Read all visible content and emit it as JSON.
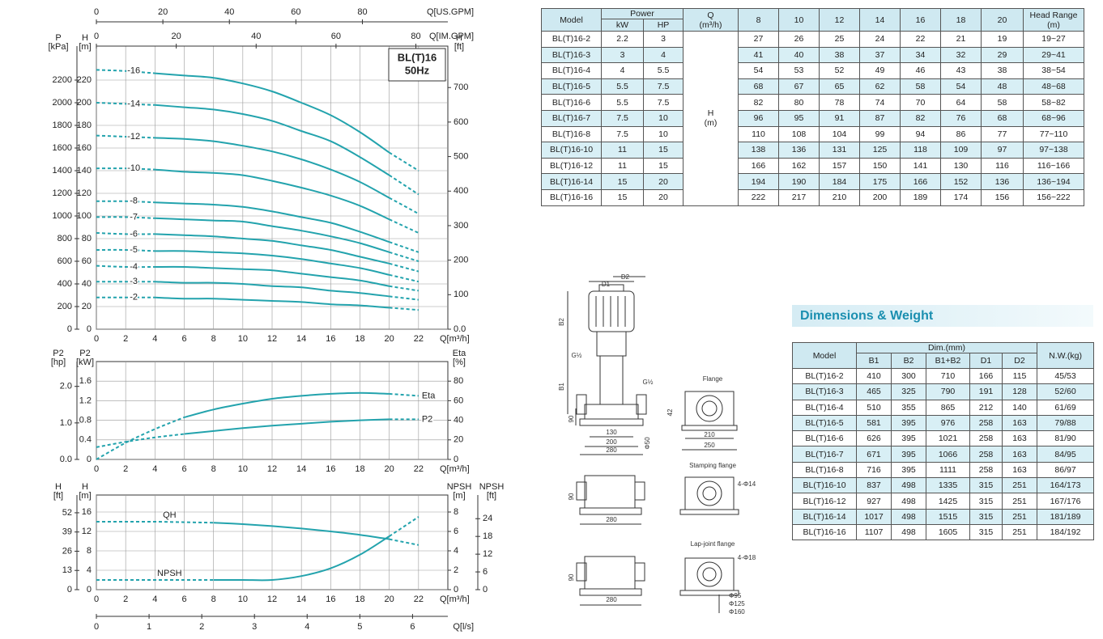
{
  "chart_data": [
    {
      "type": "line",
      "title": [
        "BL(T)16",
        "50Hz"
      ],
      "xlabel": "Q[m³/h]",
      "x": [
        0,
        2,
        4,
        6,
        8,
        10,
        12,
        14,
        16,
        18,
        20,
        22
      ],
      "xlim": [
        0,
        24
      ],
      "xticks": [
        0,
        2,
        4,
        6,
        8,
        10,
        12,
        14,
        16,
        18,
        20,
        22
      ],
      "x_extra": [
        {
          "label": "Q[US.GPM]",
          "lim": [
            0,
            105.7
          ],
          "ticks": [
            0,
            20,
            40,
            60,
            80
          ]
        },
        {
          "label": "Q[IM.GPM]",
          "lim": [
            0,
            88
          ],
          "ticks": [
            0,
            20,
            40,
            60,
            80
          ]
        }
      ],
      "ylabel": [
        "H",
        "[m]"
      ],
      "ylim": [
        0,
        250
      ],
      "yticks": [
        0,
        20,
        40,
        60,
        80,
        100,
        120,
        140,
        160,
        180,
        200,
        220
      ],
      "y_outer": {
        "label": [
          "P",
          "[kPa]"
        ],
        "lim": [
          0,
          2500
        ],
        "ticks": [
          0,
          200,
          400,
          600,
          800,
          1000,
          1200,
          1400,
          1600,
          1800,
          2000,
          2200
        ]
      },
      "y2label": [
        "H",
        "[ft]"
      ],
      "y2lim": [
        0,
        820
      ],
      "y2ticks": [
        {
          "value": 0,
          "label": "0.0"
        },
        100,
        200,
        300,
        400,
        500,
        600,
        700
      ],
      "grid": true,
      "solid_x": [
        4,
        20
      ],
      "series": [
        {
          "name": "-2",
          "color": "#23a3ad",
          "values": [
            28,
            28,
            28,
            27,
            27,
            26,
            25,
            24,
            22,
            21,
            19,
            17
          ]
        },
        {
          "name": "-3",
          "color": "#23a3ad",
          "values": [
            42,
            42,
            42,
            41,
            41,
            40,
            38,
            37,
            34,
            32,
            29,
            26
          ]
        },
        {
          "name": "-4",
          "color": "#23a3ad",
          "values": [
            56,
            55,
            55,
            55,
            54,
            53,
            52,
            49,
            46,
            43,
            38,
            34
          ]
        },
        {
          "name": "-5",
          "color": "#23a3ad",
          "values": [
            70,
            70,
            69,
            69,
            68,
            67,
            65,
            62,
            58,
            54,
            48,
            42
          ]
        },
        {
          "name": "-6",
          "color": "#23a3ad",
          "values": [
            85,
            84,
            84,
            83,
            82,
            80,
            78,
            74,
            70,
            64,
            58,
            51
          ]
        },
        {
          "name": "-7",
          "color": "#23a3ad",
          "values": [
            99,
            99,
            98,
            97,
            96,
            95,
            91,
            87,
            82,
            76,
            68,
            60
          ]
        },
        {
          "name": "-8",
          "color": "#23a3ad",
          "values": [
            113,
            113,
            112,
            111,
            110,
            108,
            104,
            99,
            94,
            86,
            77,
            68
          ]
        },
        {
          "name": "-10",
          "color": "#23a3ad",
          "values": [
            142,
            142,
            141,
            139,
            138,
            136,
            131,
            125,
            118,
            109,
            97,
            85
          ]
        },
        {
          "name": "-12",
          "color": "#23a3ad",
          "values": [
            171,
            170,
            169,
            168,
            166,
            162,
            157,
            150,
            141,
            130,
            116,
            102
          ]
        },
        {
          "name": "-14",
          "color": "#23a3ad",
          "values": [
            200,
            199,
            198,
            196,
            194,
            190,
            184,
            175,
            166,
            152,
            136,
            119
          ]
        },
        {
          "name": "-16",
          "color": "#23a3ad",
          "values": [
            229,
            228,
            226,
            224,
            222,
            217,
            210,
            200,
            189,
            174,
            156,
            140
          ]
        }
      ]
    },
    {
      "type": "line",
      "xlabel": "Q[m³/h]",
      "x": [
        0,
        2,
        4,
        6,
        8,
        10,
        12,
        14,
        16,
        18,
        20,
        22
      ],
      "xlim": [
        0,
        24
      ],
      "xticks": [
        0,
        2,
        4,
        6,
        8,
        10,
        12,
        14,
        16,
        18,
        20,
        22
      ],
      "ylabel": [
        "P2",
        "[kW]"
      ],
      "ylim": [
        0,
        2
      ],
      "yticks": [
        0,
        0.4,
        0.8,
        1.2,
        1.6
      ],
      "y_outer": {
        "label": [
          "P2",
          "[hp]"
        ],
        "lim": [
          0,
          2.68
        ],
        "ticks": [
          {
            "value": 0,
            "label": "0.0"
          },
          {
            "value": 1,
            "label": "1.0"
          },
          {
            "value": 2,
            "label": "2.0"
          }
        ]
      },
      "y2label": [
        "Eta",
        "[%]"
      ],
      "y2lim": [
        0,
        100
      ],
      "y2ticks": [
        0,
        20,
        40,
        60,
        80
      ],
      "grid": true,
      "solid_x": [
        6,
        20
      ],
      "series": [
        {
          "name": "Eta",
          "color": "#23a3ad",
          "axis": "y2",
          "values": [
            0,
            17,
            31,
            43,
            51,
            57,
            62,
            65,
            67,
            68,
            67,
            65
          ]
        },
        {
          "name": "P2",
          "color": "#23a3ad",
          "values": [
            0.25,
            0.36,
            0.45,
            0.52,
            0.58,
            0.64,
            0.69,
            0.73,
            0.77,
            0.8,
            0.82,
            0.82
          ]
        }
      ]
    },
    {
      "type": "line",
      "xlabel": "Q[m³/h]",
      "x": [
        0,
        2,
        4,
        6,
        8,
        10,
        12,
        14,
        16,
        18,
        20,
        22
      ],
      "xlim": [
        0,
        24
      ],
      "xticks": [
        0,
        2,
        4,
        6,
        8,
        10,
        12,
        14,
        16,
        18,
        20,
        22
      ],
      "x_extra": [
        {
          "label": "Q[l/s]",
          "lim": [
            0,
            6.67
          ],
          "ticks": [
            0,
            1,
            2,
            3,
            4,
            5,
            6
          ]
        }
      ],
      "ylabel": [
        "H",
        "[m]"
      ],
      "ylim": [
        0,
        19.5
      ],
      "yticks": [
        0,
        4,
        8,
        12,
        16
      ],
      "y_outer": {
        "label": [
          "H",
          "[ft]"
        ],
        "lim": [
          0,
          64
        ],
        "ticks": [
          0,
          13,
          26,
          39,
          52
        ]
      },
      "y2label": [
        "NPSH",
        "[m]"
      ],
      "y2lim": [
        0,
        9.75
      ],
      "y2ticks": [
        0,
        2,
        4,
        6,
        8
      ],
      "y2_outer": {
        "label": [
          "NPSH",
          "[ft]"
        ],
        "lim": [
          0,
          32
        ],
        "ticks": [
          0,
          6,
          12,
          18,
          24
        ]
      },
      "grid": true,
      "solid_x": [
        8,
        20
      ],
      "series": [
        {
          "name": "QH",
          "color": "#23a3ad",
          "values": [
            14,
            14,
            14,
            13.9,
            13.8,
            13.5,
            13.1,
            12.6,
            12,
            11.3,
            10.4,
            9.2
          ]
        },
        {
          "name": "NPSH",
          "color": "#23a3ad",
          "axis": "y2",
          "values": [
            1,
            1,
            1,
            1,
            1,
            1,
            1,
            1.4,
            2.2,
            3.6,
            5.5,
            7.5
          ]
        }
      ]
    }
  ],
  "performance_table": {
    "header": {
      "model": "Model",
      "power": "Power",
      "kw": "kW",
      "hp": "HP",
      "q": "Q",
      "q_unit": "(m³/h)",
      "flows": [
        8,
        10,
        12,
        14,
        16,
        18,
        20
      ],
      "range": "Head Range",
      "range_unit": "(m)"
    },
    "h_label": "H",
    "h_unit": "(m)",
    "rows": [
      {
        "model": "BL(T)16-2",
        "kw": 2.2,
        "hp": 3,
        "heads": [
          27,
          26,
          25,
          24,
          22,
          21,
          19
        ],
        "range": "19~27"
      },
      {
        "model": "BL(T)16-3",
        "kw": 3,
        "hp": 4,
        "heads": [
          41,
          40,
          38,
          37,
          34,
          32,
          29
        ],
        "range": "29~41"
      },
      {
        "model": "BL(T)16-4",
        "kw": 4,
        "hp": 5.5,
        "heads": [
          54,
          53,
          52,
          49,
          46,
          43,
          38
        ],
        "range": "38~54"
      },
      {
        "model": "BL(T)16-5",
        "kw": 5.5,
        "hp": 7.5,
        "heads": [
          68,
          67,
          65,
          62,
          58,
          54,
          48
        ],
        "range": "48~68"
      },
      {
        "model": "BL(T)16-6",
        "kw": 5.5,
        "hp": 7.5,
        "heads": [
          82,
          80,
          78,
          74,
          70,
          64,
          58
        ],
        "range": "58~82"
      },
      {
        "model": "BL(T)16-7",
        "kw": 7.5,
        "hp": 10,
        "heads": [
          96,
          95,
          91,
          87,
          82,
          76,
          68
        ],
        "range": "68~96"
      },
      {
        "model": "BL(T)16-8",
        "kw": 7.5,
        "hp": 10,
        "heads": [
          110,
          108,
          104,
          99,
          94,
          86,
          77
        ],
        "range": "77~110"
      },
      {
        "model": "BL(T)16-10",
        "kw": 11,
        "hp": 15,
        "heads": [
          138,
          136,
          131,
          125,
          118,
          109,
          97
        ],
        "range": "97~138"
      },
      {
        "model": "BL(T)16-12",
        "kw": 11,
        "hp": 15,
        "heads": [
          166,
          162,
          157,
          150,
          141,
          130,
          116
        ],
        "range": "116~166"
      },
      {
        "model": "BL(T)16-14",
        "kw": 15,
        "hp": 20,
        "heads": [
          194,
          190,
          184,
          175,
          166,
          152,
          136
        ],
        "range": "136~194"
      },
      {
        "model": "BL(T)16-16",
        "kw": 15,
        "hp": 20,
        "heads": [
          222,
          217,
          210,
          200,
          189,
          174,
          156
        ],
        "range": "156~222"
      }
    ]
  },
  "dimensions": {
    "title": "Dimensions & Weight",
    "header": {
      "model": "Model",
      "dim": "Dim.(mm)",
      "cols": [
        "B1",
        "B2",
        "B1+B2",
        "D1",
        "D2"
      ],
      "weight": "N.W.(kg)"
    },
    "rows": [
      {
        "model": "BL(T)16-2",
        "dims": [
          410,
          300,
          710,
          166,
          115
        ],
        "weight": "45/53"
      },
      {
        "model": "BL(T)16-3",
        "dims": [
          465,
          325,
          790,
          191,
          128
        ],
        "weight": "52/60"
      },
      {
        "model": "BL(T)16-4",
        "dims": [
          510,
          355,
          865,
          212,
          140
        ],
        "weight": "61/69"
      },
      {
        "model": "BL(T)16-5",
        "dims": [
          581,
          395,
          976,
          258,
          163
        ],
        "weight": "79/88"
      },
      {
        "model": "BL(T)16-6",
        "dims": [
          626,
          395,
          1021,
          258,
          163
        ],
        "weight": "81/90"
      },
      {
        "model": "BL(T)16-7",
        "dims": [
          671,
          395,
          1066,
          258,
          163
        ],
        "weight": "84/95"
      },
      {
        "model": "BL(T)16-8",
        "dims": [
          716,
          395,
          1111,
          258,
          163
        ],
        "weight": "86/97"
      },
      {
        "model": "BL(T)16-10",
        "dims": [
          837,
          498,
          1335,
          315,
          251
        ],
        "weight": "164/173"
      },
      {
        "model": "BL(T)16-12",
        "dims": [
          927,
          498,
          1425,
          315,
          251
        ],
        "weight": "167/176"
      },
      {
        "model": "BL(T)16-14",
        "dims": [
          1017,
          498,
          1515,
          315,
          251
        ],
        "weight": "181/189"
      },
      {
        "model": "BL(T)16-16",
        "dims": [
          1107,
          498,
          1605,
          315,
          251
        ],
        "weight": "184/192"
      }
    ]
  },
  "drawing": {
    "labels": [
      "D1",
      "D2",
      "B2",
      "G½",
      "G½",
      "B1",
      "90",
      "130",
      "200",
      "280",
      "Φ50",
      "Flange",
      "42",
      "210",
      "250",
      "Stamping flange",
      "4-Φ14",
      "90",
      "280",
      "Lap-joint flange",
      "4-Φ18",
      "90",
      "280",
      "Φ95",
      "Φ125",
      "Φ160"
    ]
  }
}
